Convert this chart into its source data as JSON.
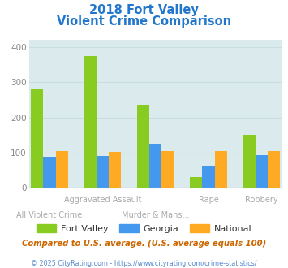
{
  "title_line1": "2018 Fort Valley",
  "title_line2": "Violent Crime Comparison",
  "series": {
    "Fort Valley": [
      281,
      375,
      235,
      30,
      150
    ],
    "Georgia": [
      88,
      91,
      126,
      62,
      93
    ],
    "National": [
      103,
      102,
      103,
      103,
      103
    ]
  },
  "colors": {
    "Fort Valley": "#88cc22",
    "Georgia": "#4499ee",
    "National": "#ffaa22"
  },
  "ylim": [
    0,
    420
  ],
  "yticks": [
    0,
    100,
    200,
    300,
    400
  ],
  "bg_color": "#daeaed",
  "title_color": "#2277cc",
  "label_color": "#aaaaaa",
  "grid_color": "#c8dde0",
  "compare_text": "Compared to U.S. average. (U.S. average equals 100)",
  "footer_text": "© 2025 CityRating.com - https://www.cityrating.com/crime-statistics/",
  "compare_color": "#cc6600",
  "footer_color": "#5588cc",
  "x_labels_top": [
    "",
    "Aggravated Assault",
    "",
    "Rape",
    "Robbery"
  ],
  "x_labels_bot": [
    "All Violent Crime",
    "",
    "Murder & Mans...",
    "",
    ""
  ],
  "x_positions": [
    0,
    1.15,
    2.3,
    3.45,
    4.6
  ]
}
